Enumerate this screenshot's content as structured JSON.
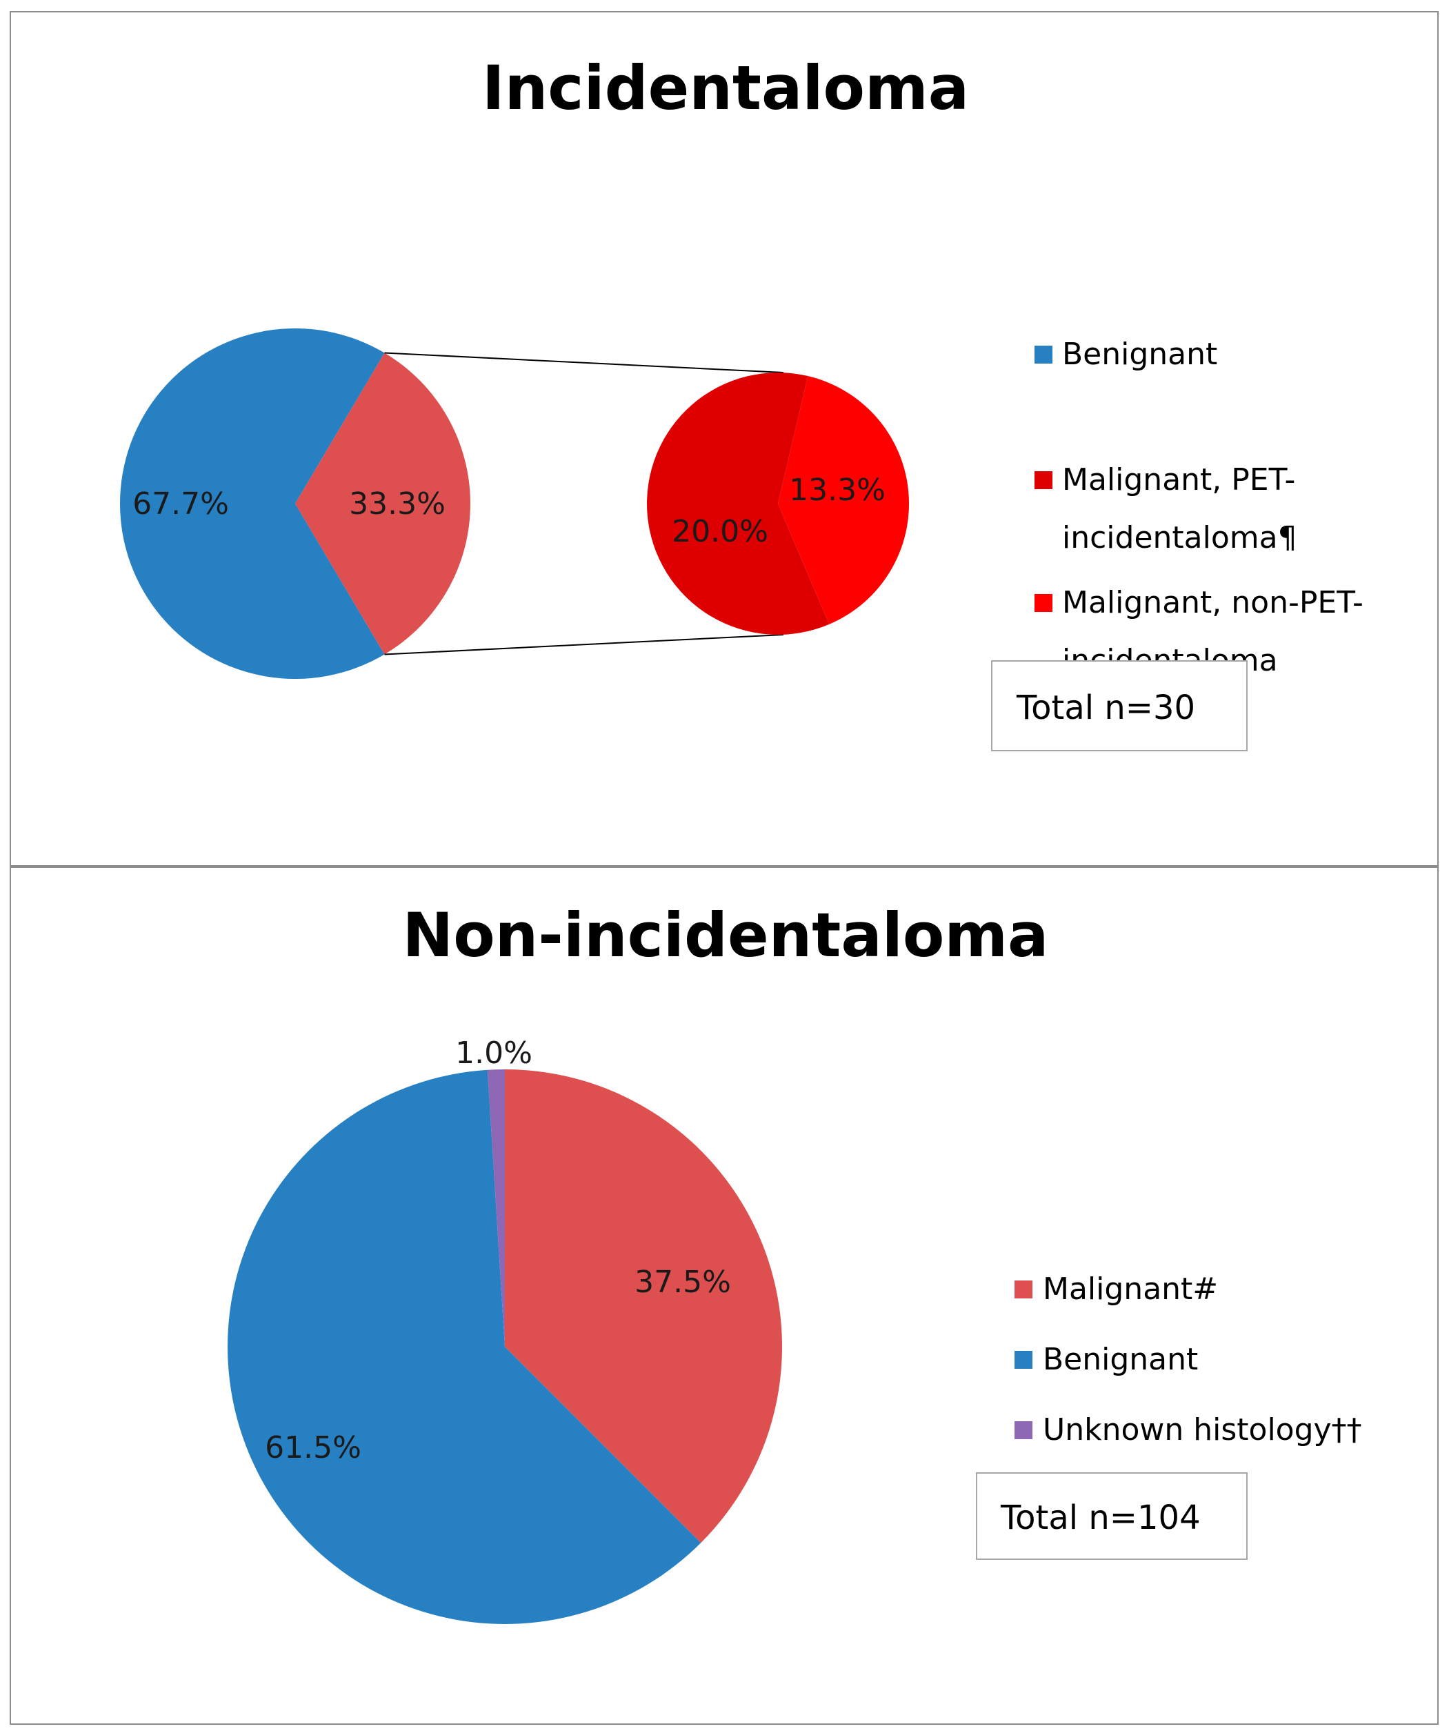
{
  "chart_data": [
    {
      "type": "pie",
      "variant": "pie-of-pie",
      "title": "Incidentaloma",
      "main_pie": {
        "categories": [
          "Benignant",
          "Malignant"
        ],
        "values": [
          67.7,
          33.3
        ],
        "labels": [
          "67.7%",
          "33.3%"
        ],
        "colors": [
          "#2680c2",
          "#de5050"
        ]
      },
      "secondary_pie": {
        "categories": [
          "Malignant, PET-incidentaloma¶",
          "Malignant, non-PET-incidentaloma"
        ],
        "values": [
          20.0,
          13.3
        ],
        "labels": [
          "20.0%",
          "13.3%"
        ],
        "colors": [
          "#de0000",
          "#ff0000"
        ]
      },
      "legend": [
        {
          "label_lines": [
            "Benignant"
          ],
          "color": "#2680c2"
        },
        {
          "label_lines": [
            "Malignant, PET-",
            "incidentaloma¶"
          ],
          "color": "#de0000"
        },
        {
          "label_lines": [
            "Malignant, non-PET-",
            "incidentaloma"
          ],
          "color": "#ff0000"
        }
      ],
      "total_label": "Total n=30",
      "legend_position": "right"
    },
    {
      "type": "pie",
      "title": "Non-incidentaloma",
      "categories": [
        "Malignant#",
        "Benignant",
        "Unknown histology††"
      ],
      "values": [
        37.5,
        61.5,
        1.0
      ],
      "labels": [
        "37.5%",
        "61.5%",
        "1.0%"
      ],
      "colors": [
        "#de5050",
        "#2680c2",
        "#8e68b4"
      ],
      "total_label": "Total n=104",
      "legend_position": "right"
    }
  ]
}
